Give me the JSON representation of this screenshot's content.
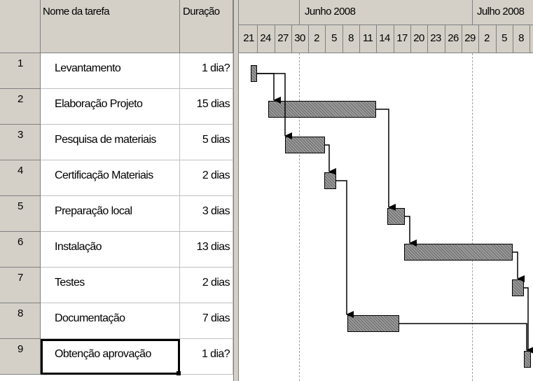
{
  "grid": {
    "headers": {
      "name": "Nome da tarefa",
      "duration": "Duração"
    },
    "tasks": [
      {
        "id": "1",
        "name": "Levantamento",
        "duration": "1 dia?"
      },
      {
        "id": "2",
        "name": "Elaboração Projeto",
        "duration": "15 dias"
      },
      {
        "id": "3",
        "name": "Pesquisa de materiais",
        "duration": "5 dias"
      },
      {
        "id": "4",
        "name": "Certificação Materiais",
        "duration": "2 dias"
      },
      {
        "id": "5",
        "name": "Preparação local",
        "duration": "3 dias"
      },
      {
        "id": "6",
        "name": "Instalação",
        "duration": "13 dias"
      },
      {
        "id": "7",
        "name": "Testes",
        "duration": "2 dias"
      },
      {
        "id": "8",
        "name": "Documentação",
        "duration": "7 dias"
      },
      {
        "id": "9",
        "name": "Obtenção aprovação",
        "duration": "1 dia?"
      }
    ],
    "selected_row": 8
  },
  "timeline": {
    "months": [
      "Junho 2008",
      "Julho 2008"
    ],
    "days": [
      "21",
      "24",
      "27",
      "30",
      "2",
      "5",
      "8",
      "11",
      "14",
      "17",
      "20",
      "23",
      "26",
      "29",
      "2",
      "5",
      "8"
    ]
  },
  "colors": {
    "header_bg": "#d4d0c8",
    "bar_fill": "#9a9a9a",
    "grid_line": "#c0c0c0"
  }
}
